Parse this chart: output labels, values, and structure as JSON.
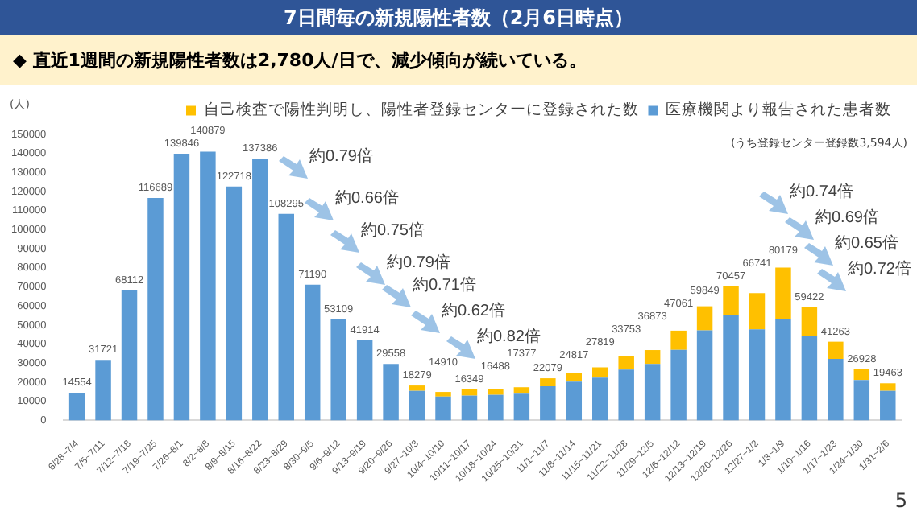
{
  "chart_data": {
    "type": "bar",
    "title": "7日間毎の新規陽性者数（2月6日時点）",
    "subtitle": "◆  直近1週間の新規陽性者数は2,780人/日で、減少傾向が続いている。",
    "ylabel": "(人)",
    "categories": [
      "6/28~7/4",
      "7/5~7/11",
      "7/12~7/18",
      "7/19~7/25",
      "7/26~8/1",
      "8/2~8/8",
      "8/9~8/15",
      "8/16~8/22",
      "8/23~8/29",
      "8/30~9/5",
      "9/6~9/12",
      "9/13~9/19",
      "9/20~9/26",
      "9/27~10/3",
      "10/4~10/10",
      "10/11~10/17",
      "10/18~10/24",
      "10/25~10/31",
      "11/1~11/7",
      "11/8~11/14",
      "11/15~11/21",
      "11/22~11/28",
      "11/29~12/5",
      "12/6~12/12",
      "12/13~12/19",
      "12/20~12/26",
      "12/27~1/2",
      "1/3~1/9",
      "1/10~1/16",
      "1/17~1/23",
      "1/24~1/30",
      "1/31~2/6"
    ],
    "stacked": true,
    "series": [
      {
        "name": "医療機関より報告された患者数",
        "color": "#5b9bd5",
        "values": [
          14554,
          31721,
          68112,
          116689,
          139846,
          140879,
          122718,
          137386,
          108295,
          71190,
          53109,
          41914,
          29558,
          15500,
          12500,
          13000,
          13400,
          14000,
          17900,
          20300,
          22400,
          26600,
          29600,
          37000,
          47200,
          55000,
          47800,
          53100,
          44200,
          32200,
          21200,
          15500
        ]
      },
      {
        "name": "自己検査で陽性判明し、陽性者登録センターに登録された数",
        "color": "#ffc000",
        "values": [
          null,
          null,
          null,
          null,
          null,
          null,
          null,
          null,
          null,
          null,
          null,
          null,
          null,
          2779,
          2410,
          3349,
          3088,
          3377,
          4179,
          4517,
          5419,
          7153,
          7273,
          10061,
          12649,
          15457,
          18941,
          27079,
          15222,
          9063,
          5728,
          3963
        ]
      }
    ],
    "totals": [
      "14554",
      "31721",
      "68112",
      "116689",
      "139846",
      "140879",
      "122718",
      "137386",
      "108295",
      "71190",
      "53109",
      "41914",
      "29558",
      "18279",
      "14910",
      "16349",
      "16488",
      "17377",
      "22079",
      "24817",
      "27819",
      "33753",
      "36873",
      "47061",
      "59849",
      "70457",
      "66741",
      "80179",
      "59422",
      "41263",
      "26928",
      "19463"
    ],
    "ylim": [
      0,
      150000
    ],
    "yticks": [
      0,
      10000,
      20000,
      30000,
      40000,
      50000,
      60000,
      70000,
      80000,
      90000,
      100000,
      110000,
      120000,
      130000,
      140000,
      150000
    ],
    "grid": false,
    "legend": "top right",
    "annotations": [
      "約0.79倍",
      "約0.66倍",
      "約0.75倍",
      "約0.79倍",
      "約0.71倍",
      "約0.62倍",
      "約0.82倍",
      "約0.74倍",
      "約0.69倍",
      "約0.65倍",
      "約0.72倍",
      "(うち登録センター登録数3,594人)",
      "5"
    ]
  }
}
